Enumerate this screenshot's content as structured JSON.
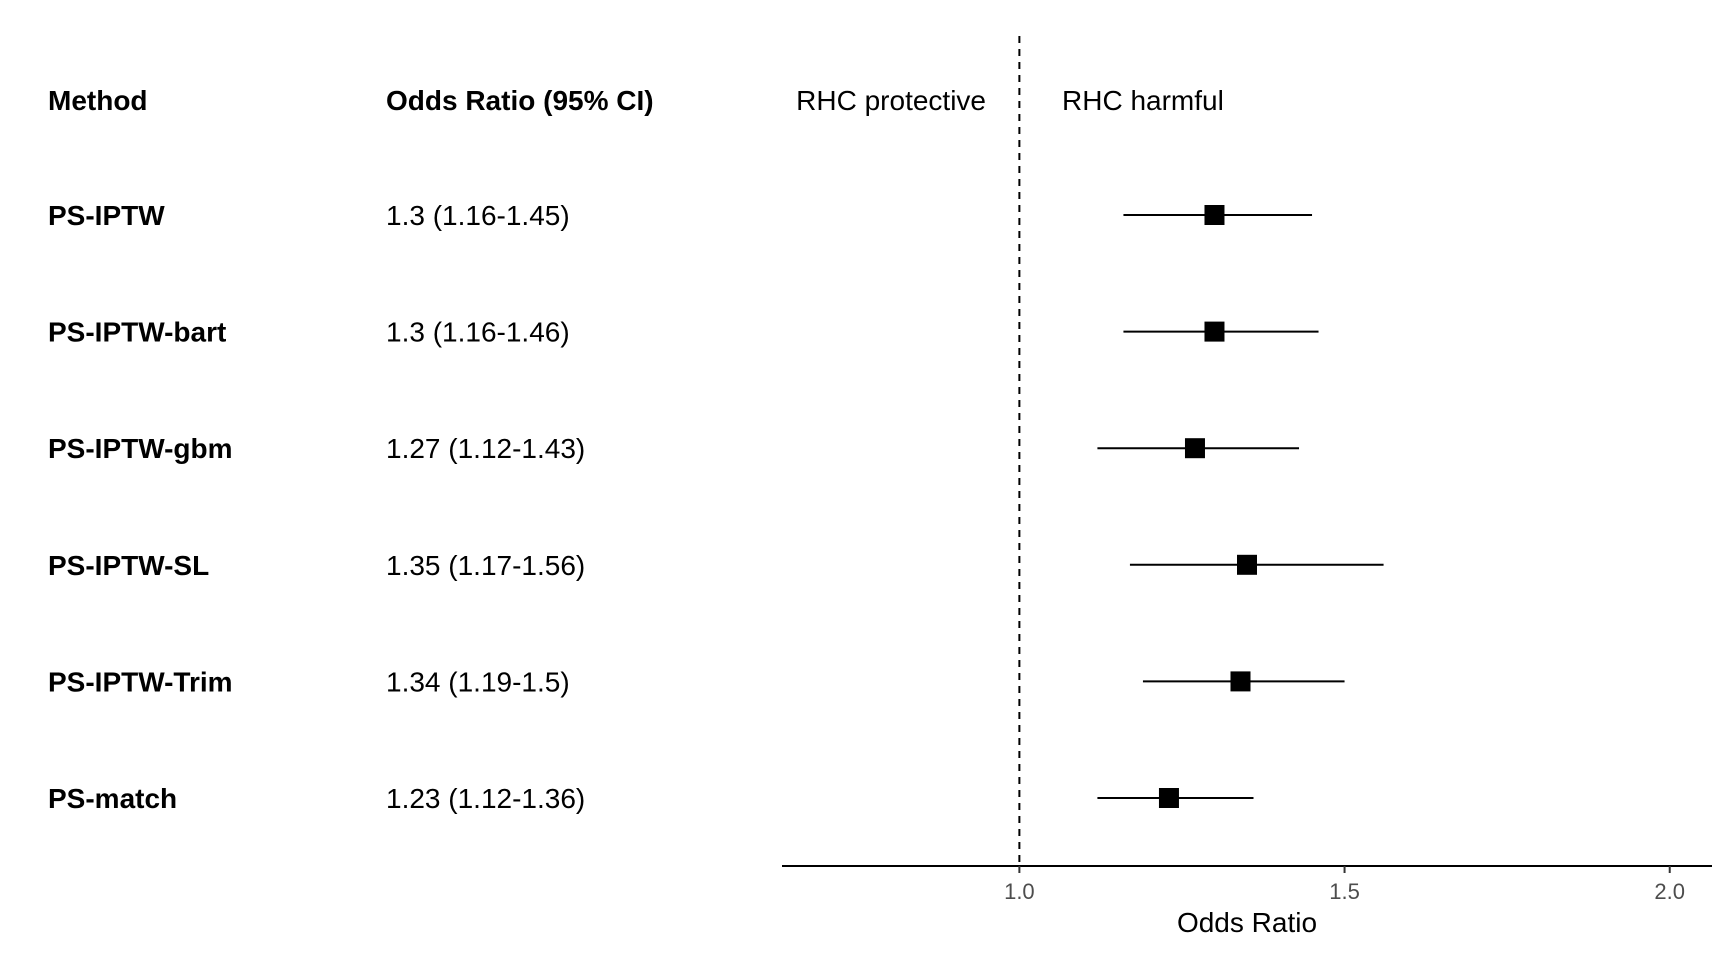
{
  "chart_data": {
    "type": "forest",
    "headers": {
      "method": "Method",
      "estimate": "Odds Ratio (95% CI)"
    },
    "annotations": {
      "left": "RHC protective",
      "right": "RHC harmful"
    },
    "rows": [
      {
        "method": "PS-IPTW",
        "label": "1.3 (1.16-1.45)",
        "or": 1.3,
        "lo": 1.16,
        "hi": 1.45
      },
      {
        "method": "PS-IPTW-bart",
        "label": "1.3 (1.16-1.46)",
        "or": 1.3,
        "lo": 1.16,
        "hi": 1.46
      },
      {
        "method": "PS-IPTW-gbm",
        "label": "1.27 (1.12-1.43)",
        "or": 1.27,
        "lo": 1.12,
        "hi": 1.43
      },
      {
        "method": "PS-IPTW-SL",
        "label": "1.35 (1.17-1.56)",
        "or": 1.35,
        "lo": 1.17,
        "hi": 1.56
      },
      {
        "method": "PS-IPTW-Trim",
        "label": "1.34 (1.19-1.5)",
        "or": 1.34,
        "lo": 1.19,
        "hi": 1.5
      },
      {
        "method": "PS-match",
        "label": "1.23 (1.12-1.36)",
        "or": 1.23,
        "lo": 1.12,
        "hi": 1.36
      }
    ],
    "xlabel": "Odds Ratio",
    "xticks": [
      "1.0",
      "1.5",
      "2.0"
    ],
    "xlim": [
      0.635,
      2.065
    ],
    "reference_line": 1.0,
    "reference_style": "dashed",
    "grid": false,
    "legend": "none"
  }
}
